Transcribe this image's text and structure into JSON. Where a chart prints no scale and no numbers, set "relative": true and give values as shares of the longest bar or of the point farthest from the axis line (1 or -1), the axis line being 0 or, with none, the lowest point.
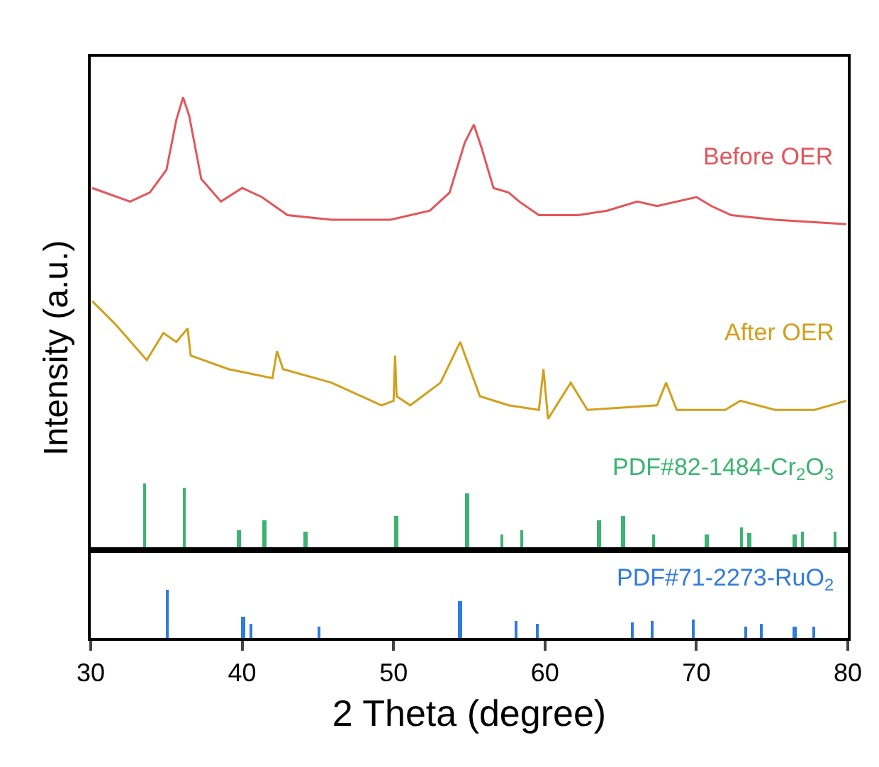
{
  "chart_data": [
    {
      "type": "line",
      "relative": true,
      "ylabel": "Intensity (a.u.)",
      "xlim": [
        30,
        80
      ],
      "xticks": [
        30,
        40,
        50,
        60,
        70,
        80
      ],
      "tick_labels": false,
      "grid": false,
      "marker": "none",
      "line_style": "solid",
      "series": [
        {
          "name": "Before OER",
          "color": "#e3555a",
          "x": [
            30.1,
            32.6,
            33.9,
            35.0,
            35.65,
            36.1,
            36.5,
            37.3,
            38.6,
            40.0,
            41.3,
            43.0,
            45.9,
            49.8,
            52.4,
            53.7,
            54.7,
            55.3,
            55.8,
            56.6,
            57.6,
            58.3,
            59.6,
            62.2,
            64.1,
            66.1,
            67.4,
            70.0,
            71.0,
            72.3,
            75.2,
            79.9
          ],
          "values": [
            0.8,
            0.77,
            0.79,
            0.84,
            0.95,
            1.0,
            0.96,
            0.82,
            0.77,
            0.8,
            0.78,
            0.74,
            0.73,
            0.73,
            0.75,
            0.79,
            0.9,
            0.94,
            0.89,
            0.8,
            0.79,
            0.77,
            0.74,
            0.74,
            0.75,
            0.77,
            0.76,
            0.78,
            0.76,
            0.74,
            0.73,
            0.72
          ]
        },
        {
          "name": "After OER",
          "color": "#d1a01c",
          "x": [
            30.1,
            31.6,
            33.7,
            34.8,
            35.65,
            36.4,
            36.6,
            39.1,
            42.0,
            42.3,
            42.7,
            45.9,
            49.2,
            50.0,
            50.1,
            50.2,
            51.1,
            53.1,
            54.4,
            55.7,
            57.6,
            59.6,
            59.9,
            60.2,
            61.7,
            62.8,
            67.4,
            68.0,
            68.7,
            71.9,
            72.9,
            75.2,
            77.8,
            79.9
          ],
          "values": [
            0.55,
            0.5,
            0.42,
            0.48,
            0.46,
            0.49,
            0.43,
            0.4,
            0.38,
            0.44,
            0.4,
            0.37,
            0.32,
            0.33,
            0.43,
            0.34,
            0.32,
            0.37,
            0.46,
            0.34,
            0.32,
            0.31,
            0.4,
            0.29,
            0.37,
            0.31,
            0.32,
            0.37,
            0.31,
            0.31,
            0.33,
            0.31,
            0.31,
            0.33
          ]
        },
        {
          "name": "PDF#82-1484-Cr$_{2}$O$_{3}$",
          "type": "bar",
          "color": "#3cb371",
          "x": [
            33.6,
            36.2,
            39.8,
            41.5,
            44.2,
            50.2,
            54.9,
            57.2,
            58.5,
            63.6,
            65.2,
            67.2,
            70.7,
            73.0,
            73.5,
            76.5,
            77.0,
            79.2
          ],
          "values": [
            0.149,
            0.139,
            0.044,
            0.066,
            0.042,
            0.075,
            0.125,
            0.036,
            0.044,
            0.066,
            0.075,
            0.036,
            0.036,
            0.05,
            0.039,
            0.036,
            0.042,
            0.042
          ]
        }
      ]
    },
    {
      "type": "bar",
      "relative": true,
      "xlabel": "2 Theta (degree)",
      "xlim": [
        30,
        80
      ],
      "xticks": [
        30,
        40,
        50,
        60,
        70,
        80
      ],
      "tick_labels": "x",
      "grid": false,
      "series": [
        {
          "name": "PDF#71-2273-RuO$_{2}$",
          "color": "#2f7be0",
          "x": [
            35.1,
            40.1,
            40.6,
            45.1,
            54.4,
            58.1,
            59.5,
            65.8,
            67.1,
            69.8,
            73.3,
            74.3,
            76.5,
            77.8
          ],
          "values": [
            1,
            0.42,
            0.28,
            0.24,
            0.75,
            0.35,
            0.28,
            0.33,
            0.35,
            0.37,
            0.23,
            0.28,
            0.23,
            0.23
          ]
        }
      ]
    }
  ]
}
